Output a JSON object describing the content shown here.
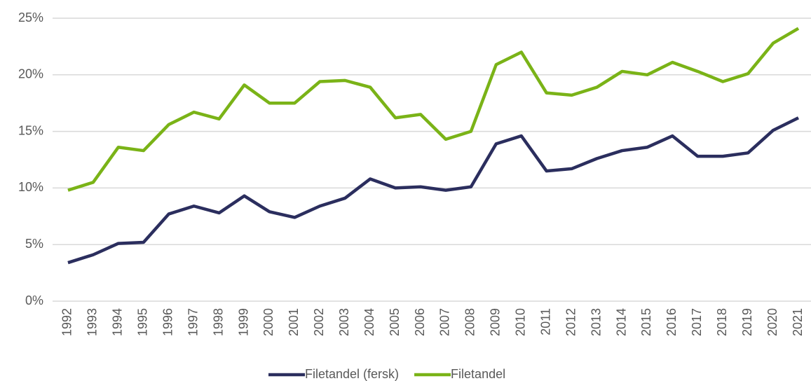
{
  "chart_data": {
    "type": "line",
    "categories": [
      "1992",
      "1993",
      "1994",
      "1995",
      "1996",
      "1997",
      "1998",
      "1999",
      "2000",
      "2001",
      "2002",
      "2003",
      "2004",
      "2005",
      "2006",
      "2007",
      "2008",
      "2009",
      "2010",
      "2011",
      "2012",
      "2013",
      "2014",
      "2015",
      "2016",
      "2017",
      "2018",
      "2019",
      "2020",
      "2021"
    ],
    "series": [
      {
        "name": "Filetandel (fersk)",
        "color": "#2b2e5e",
        "values": [
          3.4,
          4.1,
          5.1,
          5.2,
          7.7,
          8.4,
          7.8,
          9.3,
          7.9,
          7.4,
          8.4,
          9.1,
          10.8,
          10.0,
          10.1,
          9.8,
          10.1,
          13.9,
          14.6,
          11.5,
          11.7,
          12.6,
          13.3,
          13.6,
          14.6,
          12.8,
          12.8,
          13.1,
          15.1,
          16.2
        ]
      },
      {
        "name": "Filetandel",
        "color": "#7ab317",
        "values": [
          9.8,
          10.5,
          13.6,
          13.3,
          15.6,
          16.7,
          16.1,
          19.1,
          17.5,
          17.5,
          19.4,
          19.5,
          18.9,
          16.2,
          16.5,
          14.3,
          15.0,
          20.9,
          22.0,
          18.4,
          18.2,
          18.9,
          20.3,
          20.0,
          21.1,
          20.3,
          19.4,
          20.1,
          22.8,
          24.1
        ]
      }
    ],
    "ylim": [
      0,
      25
    ],
    "yticks": [
      {
        "value": 0,
        "label": "0%"
      },
      {
        "value": 5,
        "label": "5%"
      },
      {
        "value": 10,
        "label": "10%"
      },
      {
        "value": 15,
        "label": "15%"
      },
      {
        "value": 20,
        "label": "20%"
      },
      {
        "value": 25,
        "label": "25%"
      }
    ],
    "grid": true,
    "legend": "bottom"
  }
}
